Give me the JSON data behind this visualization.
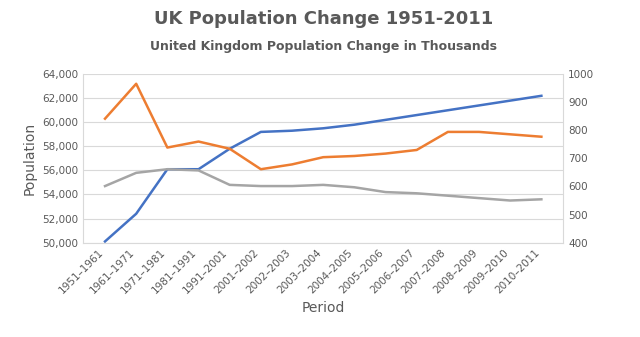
{
  "title": "UK Population Change 1951-2011",
  "subtitle": "United Kingdom Population Change in Thousands",
  "xlabel": "Period",
  "ylabel": "Population",
  "periods": [
    "1951–1961",
    "1961–1971",
    "1971–1981",
    "1981–1991",
    "1991–2001",
    "2001–2002",
    "2002–2003",
    "2003–2004",
    "2004–2005",
    "2005–2006",
    "2006–2007",
    "2007–2008",
    "2008–2009",
    "2009–2010",
    "2010–2011"
  ],
  "blue_line": [
    50100,
    52400,
    56100,
    56100,
    57800,
    59200,
    59300,
    59500,
    59800,
    60200,
    60600,
    61000,
    61400,
    61800,
    62200
  ],
  "orange_line": [
    60300,
    63200,
    57900,
    58400,
    57800,
    56100,
    56500,
    57100,
    57200,
    57400,
    57700,
    59200,
    59200,
    59000,
    58800
  ],
  "gray_line": [
    54700,
    55800,
    56100,
    56000,
    54800,
    54700,
    54700,
    54800,
    54600,
    54200,
    54100,
    53900,
    53700,
    53500,
    53600
  ],
  "blue_color": "#4472C4",
  "orange_color": "#ED7D31",
  "gray_color": "#A5A5A5",
  "text_color": "#595959",
  "ylim_left": [
    50000,
    64000
  ],
  "ylim_right": [
    400,
    1000
  ],
  "yticks_left": [
    50000,
    52000,
    54000,
    56000,
    58000,
    60000,
    62000,
    64000
  ],
  "yticks_right": [
    400,
    500,
    600,
    700,
    800,
    900,
    1000
  ],
  "background_color": "#ffffff",
  "grid_color": "#d9d9d9",
  "title_fontsize": 13,
  "subtitle_fontsize": 9,
  "axis_label_fontsize": 10,
  "tick_fontsize": 7.5,
  "line_width": 1.8
}
